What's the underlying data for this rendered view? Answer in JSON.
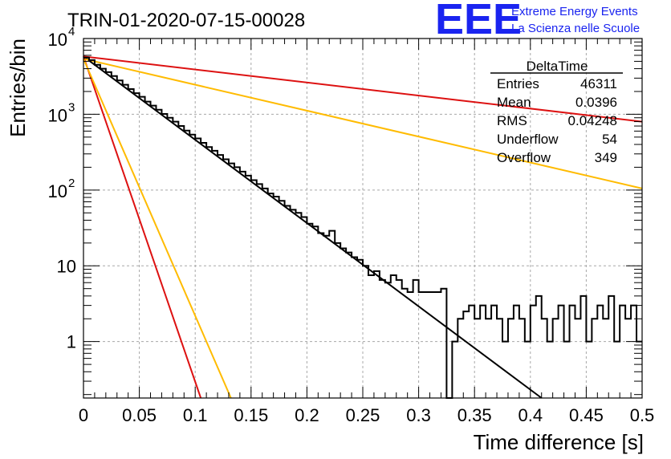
{
  "header": {
    "run_title": "TRIN-01-2020-07-15-00028",
    "logo": "EEE",
    "logo_line1": "Extreme Energy Events",
    "logo_line2": "La Scienza nelle Scuole"
  },
  "stats_box": {
    "title": "DeltaTime",
    "rows": [
      {
        "label": "Entries",
        "value": "46311"
      },
      {
        "label": "Mean",
        "value": "0.0396"
      },
      {
        "label": "RMS",
        "value": "0.04248"
      },
      {
        "label": "Underflow",
        "value": "54"
      },
      {
        "label": "Overflow",
        "value": "349"
      }
    ]
  },
  "chart_data": {
    "type": "line",
    "xlabel": "Time difference [s]",
    "ylabel": "Entries/bin",
    "xlim": [
      0,
      0.5
    ],
    "ylim": [
      0.18,
      10000
    ],
    "yscale": "log",
    "grid": true,
    "x_ticks": [
      "0",
      "0.05",
      "0.1",
      "0.15",
      "0.2",
      "0.25",
      "0.3",
      "0.35",
      "0.4",
      "0.45",
      "0.5"
    ],
    "y_ticks": [
      {
        "value": 1,
        "label": "1"
      },
      {
        "value": 10,
        "label": "10"
      },
      {
        "value": 100,
        "label": "10",
        "exp": "2"
      },
      {
        "value": 1000,
        "label": "10",
        "exp": "3"
      },
      {
        "value": 10000,
        "label": "10",
        "exp": "4"
      }
    ],
    "histogram": {
      "color": "#000000",
      "bin_width": 0.005,
      "points": [
        [
          0.0,
          5600
        ],
        [
          0.005,
          5200
        ],
        [
          0.01,
          4500
        ],
        [
          0.015,
          4000
        ],
        [
          0.02,
          3600
        ],
        [
          0.025,
          3200
        ],
        [
          0.03,
          2800
        ],
        [
          0.035,
          2450
        ],
        [
          0.04,
          2150
        ],
        [
          0.045,
          1900
        ],
        [
          0.05,
          1700
        ],
        [
          0.055,
          1470
        ],
        [
          0.06,
          1300
        ],
        [
          0.065,
          1150
        ],
        [
          0.07,
          1010
        ],
        [
          0.075,
          900
        ],
        [
          0.08,
          800
        ],
        [
          0.085,
          700
        ],
        [
          0.09,
          610
        ],
        [
          0.095,
          540
        ],
        [
          0.1,
          480
        ],
        [
          0.105,
          420
        ],
        [
          0.11,
          370
        ],
        [
          0.115,
          330
        ],
        [
          0.12,
          290
        ],
        [
          0.125,
          255
        ],
        [
          0.13,
          225
        ],
        [
          0.135,
          200
        ],
        [
          0.14,
          175
        ],
        [
          0.145,
          155
        ],
        [
          0.15,
          135
        ],
        [
          0.155,
          120
        ],
        [
          0.16,
          105
        ],
        [
          0.165,
          90
        ],
        [
          0.17,
          82
        ],
        [
          0.175,
          72
        ],
        [
          0.18,
          62
        ],
        [
          0.185,
          55
        ],
        [
          0.19,
          50
        ],
        [
          0.195,
          44
        ],
        [
          0.2,
          36
        ],
        [
          0.205,
          33
        ],
        [
          0.21,
          27
        ],
        [
          0.215,
          25
        ],
        [
          0.22,
          29
        ],
        [
          0.225,
          20
        ],
        [
          0.23,
          17
        ],
        [
          0.235,
          15
        ],
        [
          0.24,
          13
        ],
        [
          0.245,
          12
        ],
        [
          0.25,
          10
        ],
        [
          0.255,
          7.5
        ],
        [
          0.26,
          8.5
        ],
        [
          0.265,
          6.5
        ],
        [
          0.27,
          6.0
        ],
        [
          0.275,
          7.5
        ],
        [
          0.28,
          6.5
        ],
        [
          0.285,
          5.0
        ],
        [
          0.29,
          4.5
        ],
        [
          0.295,
          6.5
        ],
        [
          0.3,
          4.5
        ],
        [
          0.305,
          4.5
        ],
        [
          0.31,
          4.5
        ],
        [
          0.315,
          4.5
        ],
        [
          0.32,
          5.0
        ],
        [
          0.325,
          0.18
        ],
        [
          0.33,
          1.0
        ],
        [
          0.335,
          2.0
        ],
        [
          0.34,
          2.5
        ],
        [
          0.345,
          3.0
        ],
        [
          0.35,
          2.0
        ],
        [
          0.355,
          3.0
        ],
        [
          0.36,
          2.0
        ],
        [
          0.365,
          3.0
        ],
        [
          0.37,
          2.0
        ],
        [
          0.375,
          1.0
        ],
        [
          0.38,
          2.0
        ],
        [
          0.385,
          3.0
        ],
        [
          0.39,
          2.0
        ],
        [
          0.395,
          1.0
        ],
        [
          0.4,
          3.0
        ],
        [
          0.405,
          4.0
        ],
        [
          0.41,
          2.0
        ],
        [
          0.415,
          1.0
        ],
        [
          0.42,
          2.0
        ],
        [
          0.425,
          3.0
        ],
        [
          0.43,
          1.0
        ],
        [
          0.435,
          3.0
        ],
        [
          0.44,
          2.0
        ],
        [
          0.445,
          4.0
        ],
        [
          0.45,
          1.0
        ],
        [
          0.455,
          2.0
        ],
        [
          0.46,
          3.0
        ],
        [
          0.465,
          2.0
        ],
        [
          0.47,
          4.0
        ],
        [
          0.475,
          1.0
        ],
        [
          0.48,
          3.0
        ],
        [
          0.485,
          2.0
        ],
        [
          0.49,
          3.0
        ],
        [
          0.495,
          1.0
        ]
      ]
    },
    "series": [
      {
        "color": "#000000",
        "x": [
          0.0,
          0.41
        ],
        "y": [
          5800,
          0.18
        ]
      },
      {
        "color": "#dd1111",
        "x": [
          0.0,
          0.5
        ],
        "y": [
          5800,
          800
        ]
      },
      {
        "color": "#ffbb00",
        "x": [
          0.0,
          0.5
        ],
        "y": [
          5400,
          105
        ]
      },
      {
        "color": "#dd1111",
        "x": [
          0.0,
          0.105
        ],
        "y": [
          5800,
          0.18
        ]
      },
      {
        "color": "#ffbb00",
        "x": [
          0.0,
          0.132
        ],
        "y": [
          5400,
          0.18
        ]
      }
    ]
  }
}
